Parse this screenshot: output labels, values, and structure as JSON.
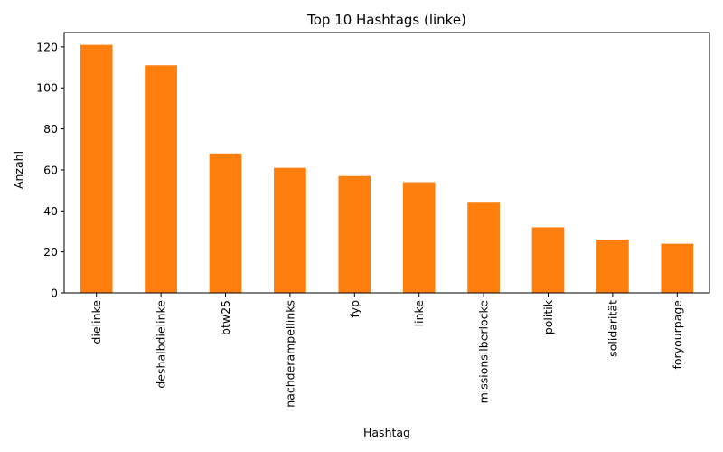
{
  "chart_data": {
    "type": "bar",
    "title": "Top 10 Hashtags (linke)",
    "xlabel": "Hashtag",
    "ylabel": "Anzahl",
    "categories": [
      "dielinke",
      "deshalbdielinke",
      "btw25",
      "nachderampellinks",
      "fyp",
      "linke",
      "missionsilberlocke",
      "politik",
      "solidarität",
      "foryourpage"
    ],
    "values": [
      121,
      111,
      68,
      61,
      57,
      54,
      44,
      32,
      26,
      24
    ],
    "ylim": [
      0,
      127
    ],
    "yticks": [
      0,
      20,
      40,
      60,
      80,
      100,
      120
    ],
    "bar_color": "#ff7f0e",
    "grid": false,
    "legend": "none"
  }
}
